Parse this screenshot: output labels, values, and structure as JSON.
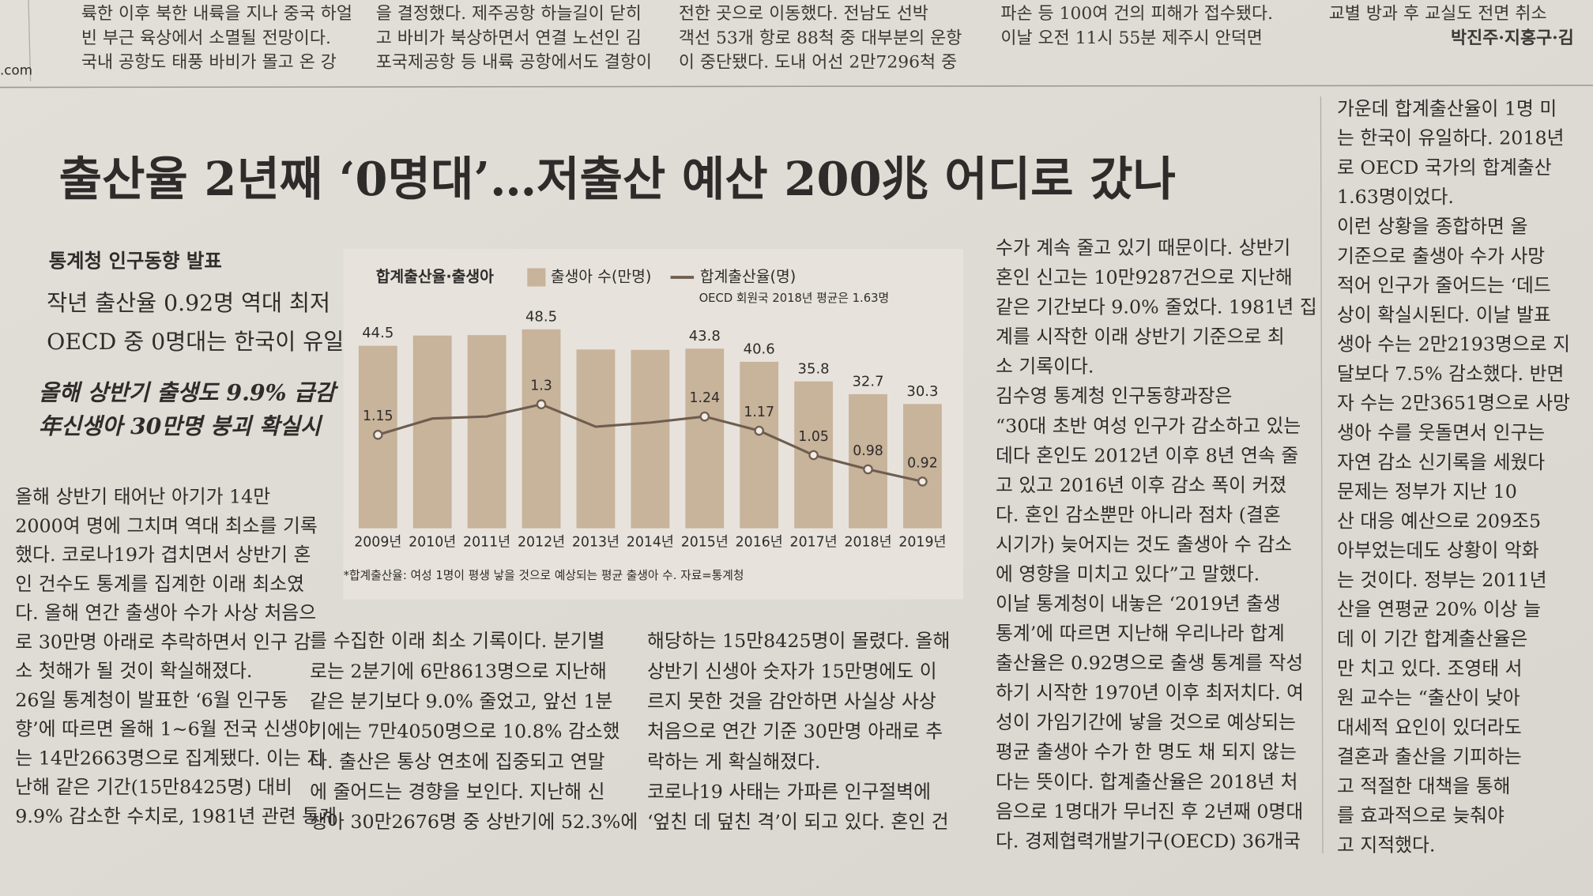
{
  "site_fragment": ".com",
  "top_strip": [
    {
      "lines": [
        "륙한 이후 북한 내륙을 지나 중국 하얼",
        "빈 부근 육상에서 소멸될 전망이다.",
        "국내 공항도 태풍 바비가 몰고 온 강"
      ]
    },
    {
      "lines": [
        "을 결정했다. 제주공항 하늘길이 닫히",
        "고 바비가 북상하면서 연결 노선인 김",
        "포국제공항 등 내륙 공항에서도 결항이"
      ]
    },
    {
      "lines": [
        "전한 곳으로 이동했다. 전남도 선박",
        "객선 53개 항로 88척 중 대부분의 운항",
        "이 중단됐다. 도내 어선 2만7296척 중"
      ]
    },
    {
      "lines": [
        "파손 등 100여 건의 피해가 접수됐다.",
        "이날 오전 11시 55분 제주시 안덕면"
      ]
    },
    {
      "lines": [
        "교별 방과 후 교실도 전면 취소",
        "박진주·지홍구·김"
      ]
    }
  ],
  "headline": "출산율 2년째 ‘0명대’…저출산 예산 200兆 어디로 갔나",
  "kicker": "통계청 인구동향 발표",
  "subheads": [
    "작년 출산율 0.92명 역대 최저",
    "OECD 중 0명대는 한국이 유일",
    "올해 상반기 출생도 9.9% 급감",
    "年신생아 30만명 붕괴 확실시"
  ],
  "chart_data": {
    "type": "combo",
    "title": "합계출산율·출생아",
    "annotation": "OECD 회원국 2018년 평균은 1.63명",
    "source": "*합계출산율: 여성 1명이 평생 낳을 것으로 예상되는 평균 출생아 수. 자료=통계청",
    "categories": [
      "2009년",
      "2010년",
      "2011년",
      "2012년",
      "2013년",
      "2014년",
      "2015년",
      "2016년",
      "2017년",
      "2018년",
      "2019년"
    ],
    "series": [
      {
        "name": "출생아 수(만명)",
        "color": "#c8b39b",
        "values": [
          44.5,
          47.0,
          47.1,
          48.5,
          43.6,
          43.5,
          43.8,
          40.6,
          35.8,
          32.7,
          30.3
        ],
        "value_labels": [
          "44.5",
          null,
          null,
          "48.5",
          null,
          null,
          "43.8",
          "40.6",
          "35.8",
          "32.7",
          "30.3"
        ]
      },
      {
        "name": "합계출산율(명)",
        "color": "#6e5d4f",
        "axis": "y2",
        "values": [
          1.15,
          1.23,
          1.24,
          1.3,
          1.19,
          1.21,
          1.24,
          1.17,
          1.05,
          0.98,
          0.92
        ],
        "value_labels": [
          "1.15",
          null,
          null,
          "1.3",
          null,
          null,
          "1.24",
          "1.17",
          "1.05",
          "0.98",
          "0.92"
        ]
      }
    ],
    "ylim": [
      0,
      55
    ],
    "y2lim": [
      0.69,
      1.8
    ]
  },
  "body_columns": [
    {
      "lines": [
        "올해 상반기 태어난 아기가 14만",
        "2000여 명에 그치며 역대 최소를 기록",
        "했다. 코로나19가 겹치면서 상반기 혼",
        "인 건수도 통계를 집계한 이래 최소였",
        "다. 올해 연간 출생아 수가 사상 처음으",
        "로 30만명 아래로 추락하면서 인구 감",
        "소 첫해가 될 것이 확실해졌다.",
        "26일 통계청이 발표한 ‘6월 인구동",
        "향’에 따르면 올해 1~6월 전국 신생아",
        "는 14만2663명으로 집계됐다. 이는 지",
        "난해 같은 기간(15만8425명) 대비",
        "9.9% 감소한 수치로, 1981년 관련 통계"
      ]
    },
    {
      "lines": [
        "를 수집한 이래 최소 기록이다. 분기별",
        "로는 2분기에 6만8613명으로 지난해",
        "같은 분기보다 9.0% 줄었고, 앞선 1분",
        "기에는 7만4050명으로 10.8% 감소했",
        "다. 출산은 통상 연초에 집중되고 연말",
        "에 줄어드는 경향을 보인다. 지난해 신",
        "생아 30만2676명 중 상반기에 52.3%에"
      ]
    },
    {
      "lines": [
        "해당하는 15만8425명이 몰렸다. 올해",
        "상반기 신생아 숫자가 15만명에도 이",
        "르지 못한 것을 감안하면 사실상 사상",
        "처음으로 연간 기준 30만명 아래로 추",
        "락하는 게 확실해졌다.",
        "코로나19 사태는 가파른 인구절벽에",
        "‘엎친 데 덮친 격’이 되고 있다. 혼인 건"
      ]
    },
    {
      "lines": [
        "수가 계속 줄고 있기 때문이다. 상반기",
        "혼인 신고는 10만9287건으로 지난해",
        "같은 기간보다 9.0% 줄었다. 1981년 집",
        "계를 시작한 이래 상반기 기준으로 최",
        "소 기록이다.",
        "김수영 통계청 인구동향과장은",
        "“30대 초반 여성 인구가 감소하고 있는",
        "데다 혼인도 2012년 이후 8년 연속 줄",
        "고 있고 2016년 이후 감소 폭이 커졌",
        "다. 혼인 감소뿐만 아니라 점차 (결혼",
        "시기가) 늦어지는 것도 출생아 수 감소",
        "에 영향을 미치고 있다”고 말했다.",
        "이날 통계청이 내놓은 ‘2019년 출생",
        "통계’에 따르면 지난해 우리나라 합계",
        "출산율은 0.92명으로 출생 통계를 작성",
        "하기 시작한 1970년 이후 최저치다. 여",
        "성이 가임기간에 낳을 것으로 예상되는",
        "평균 출생아 수가 한 명도 채 되지 않는",
        "다는 뜻이다. 합계출산율은 2018년 처",
        "음으로 1명대가 무너진 후 2년째 0명대",
        "다. 경제협력개발기구(OECD) 36개국"
      ]
    },
    {
      "lines": [
        "가운데 합계출산율이 1명 미",
        "는 한국이 유일하다. 2018년",
        "로 OECD 국가의 합계출산",
        "1.63명이었다.",
        "이런 상황을 종합하면 올",
        "기준으로 출생아 수가 사망",
        "적어 인구가 줄어드는 ‘데드",
        "상이 확실시된다. 이날 발표",
        "생아 수는 2만2193명으로 지",
        "달보다 7.5% 감소했다. 반면",
        "자 수는 2만3651명으로 사망",
        "생아 수를 웃돌면서 인구는",
        "자연 감소 신기록을 세웠다",
        "문제는 정부가 지난 10",
        "산 대응 예산으로 209조5",
        "아부었는데도 상황이 악화",
        "는 것이다. 정부는 2011년",
        "산을 연평균 20% 이상 늘",
        "데 이 기간 합계출산율은",
        "만 치고 있다. 조영태 서",
        "원 교수는 “출산이 낮아",
        "대세적 요인이 있더라도",
        "결혼과 출산을 기피하는",
        "고 적절한 대책을 통해",
        "를 효과적으로 늦춰야",
        "고 지적했다."
      ]
    }
  ]
}
